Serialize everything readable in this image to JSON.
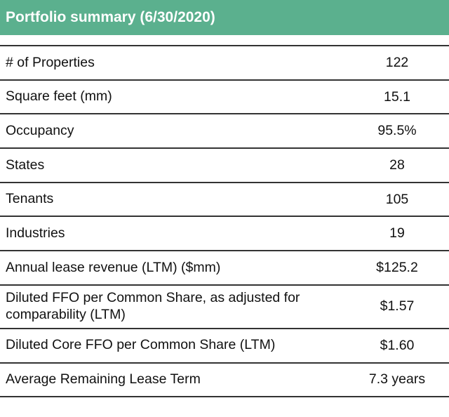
{
  "header": {
    "title": "Portfolio summary (6/30/2020)"
  },
  "table": {
    "rows": [
      {
        "label": "# of Properties",
        "value": "122"
      },
      {
        "label": "Square feet (mm)",
        "value": "15.1"
      },
      {
        "label": "Occupancy",
        "value": "95.5%"
      },
      {
        "label": "States",
        "value": "28"
      },
      {
        "label": "Tenants",
        "value": "105"
      },
      {
        "label": "Industries",
        "value": "19"
      },
      {
        "label": "Annual lease revenue (LTM) ($mm)",
        "value": "$125.2"
      },
      {
        "label": "Diluted FFO per Common Share, as adjusted for comparability (LTM)",
        "value": "$1.57"
      },
      {
        "label": "Diluted Core FFO per Common Share (LTM)",
        "value": "$1.60"
      },
      {
        "label": "Average Remaining Lease Term",
        "value": "7.3 years"
      }
    ]
  },
  "colors": {
    "header_bg": "#5bb08e",
    "header_text": "#ffffff",
    "rule": "#333333"
  }
}
